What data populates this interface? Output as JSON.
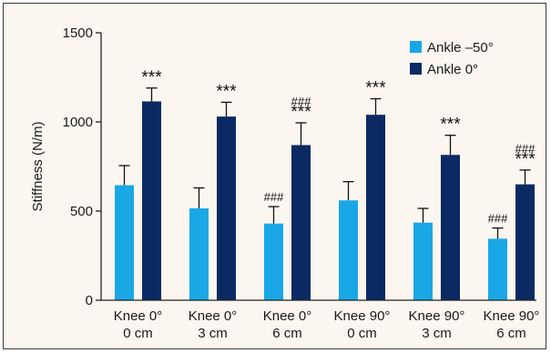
{
  "chart_data": {
    "type": "bar",
    "ylabel": "Stiffness (N/m)",
    "ylim": [
      0,
      1500
    ],
    "yticks": [
      0,
      500,
      1000,
      1500
    ],
    "grid": false,
    "legend_position": "top-right",
    "categories": [
      [
        "Knee 0°",
        "0 cm"
      ],
      [
        "Knee 0°",
        "3 cm"
      ],
      [
        "Knee 0°",
        "6 cm"
      ],
      [
        "Knee 90°",
        "0 cm"
      ],
      [
        "Knee 90°",
        "3 cm"
      ],
      [
        "Knee 90°",
        "6 cm"
      ]
    ],
    "series": [
      {
        "name": "Ankle –50°",
        "color": "#1aa7e6",
        "values": [
          645,
          515,
          430,
          560,
          435,
          345
        ],
        "errors": [
          110,
          115,
          95,
          105,
          80,
          60
        ],
        "annotations": [
          "",
          "",
          "###",
          "",
          "",
          "###"
        ]
      },
      {
        "name": "Ankle 0°",
        "color": "#0b2a63",
        "values": [
          1115,
          1030,
          870,
          1040,
          815,
          650
        ],
        "errors": [
          75,
          80,
          125,
          90,
          110,
          80
        ],
        "annotations": [
          "***",
          "***",
          "###\n***",
          "***",
          "***",
          "###\n***"
        ]
      }
    ]
  }
}
